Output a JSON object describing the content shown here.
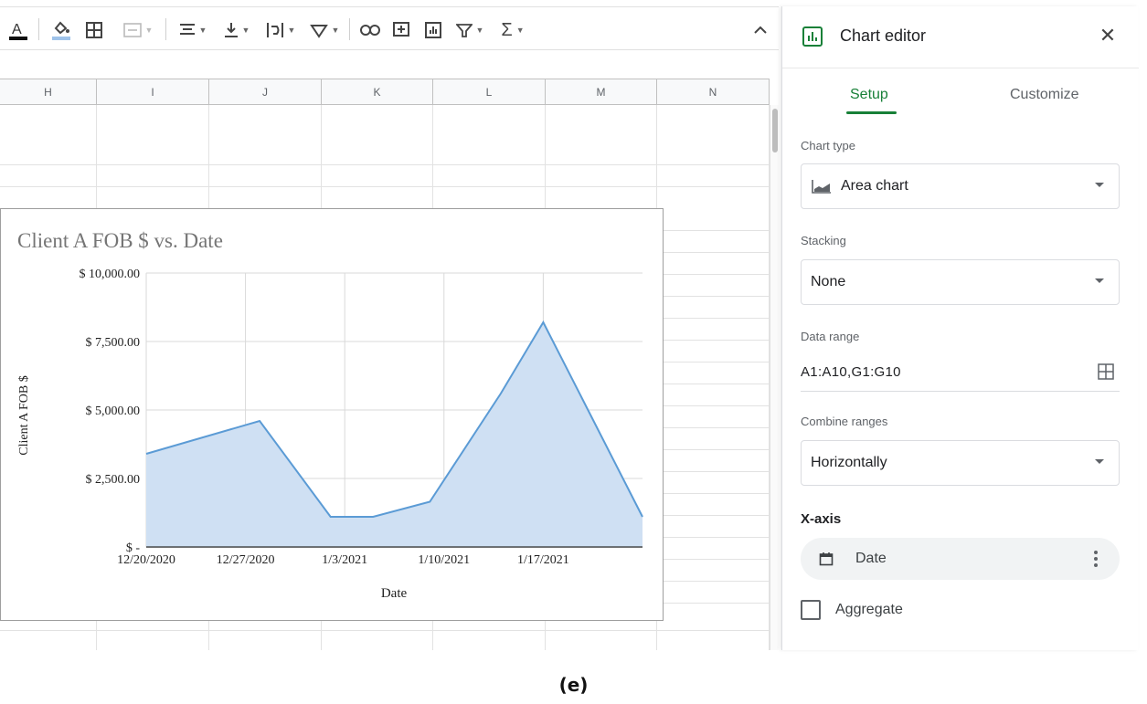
{
  "toolbar": {
    "items": [
      "text-color",
      "fill-color",
      "borders",
      "merge-cells",
      "horizontal-align",
      "vertical-align",
      "text-wrapping",
      "text-rotation",
      "insert-link",
      "insert-comment",
      "insert-chart",
      "filter",
      "functions",
      "collapse"
    ]
  },
  "grid": {
    "columns": [
      "H",
      "I",
      "J",
      "K",
      "L",
      "M",
      "N"
    ]
  },
  "chart": {
    "title": "Client A FOB $ vs. Date",
    "xlabel": "Date",
    "ylabel": "Client A FOB $"
  },
  "chart_data": {
    "type": "area",
    "title": "Client A FOB $ vs. Date",
    "xlabel": "Date",
    "ylabel": "Client A FOB $",
    "x_ticks": [
      "12/20/2020",
      "12/27/2020",
      "1/3/2021",
      "1/10/2021",
      "1/17/2021"
    ],
    "y_ticks": [
      "$ -",
      "$ 2,500.00",
      "$ 5,000.00",
      "$ 7,500.00",
      "$ 10,000.00"
    ],
    "ylim": [
      0,
      10000
    ],
    "x": [
      "2020-12-20",
      "2020-12-28",
      "2021-01-02",
      "2021-01-05",
      "2021-01-09",
      "2021-01-14",
      "2021-01-17",
      "2021-01-24"
    ],
    "values": [
      3400,
      4600,
      1100,
      1100,
      1650,
      5600,
      8200,
      1100
    ],
    "grid": true,
    "fill_color": "#cfe0f3",
    "line_color": "#5b9bd5"
  },
  "panel": {
    "title": "Chart editor",
    "tabs": [
      "Setup",
      "Customize"
    ],
    "chart_type_label": "Chart type",
    "chart_type_value": "Area chart",
    "stacking_label": "Stacking",
    "stacking_value": "None",
    "data_range_label": "Data range",
    "data_range_value": "A1:A10,G1:G10",
    "combine_label": "Combine ranges",
    "combine_value": "Horizontally",
    "xaxis_label": "X-axis",
    "xaxis_value": "Date",
    "aggregate_label": "Aggregate",
    "accent": "#188038"
  },
  "caption": "(e)"
}
